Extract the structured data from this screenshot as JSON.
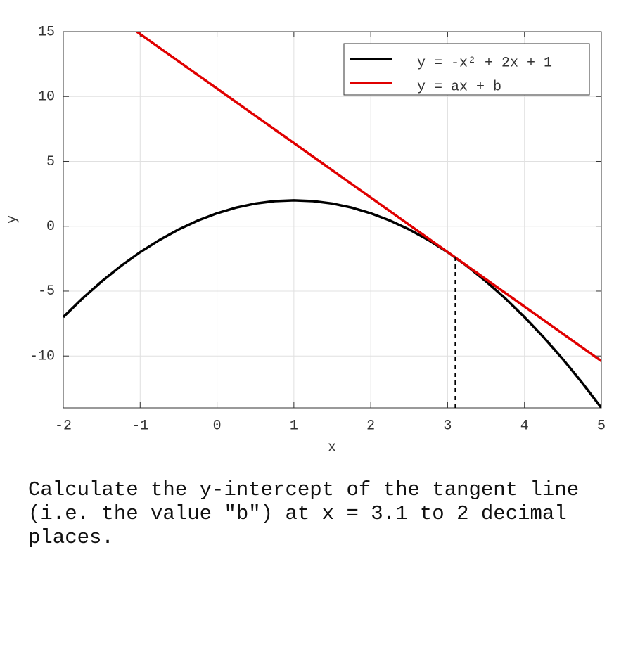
{
  "chart_data": {
    "type": "line",
    "xlabel": "x",
    "ylabel": "y",
    "xlim": [
      -2,
      5
    ],
    "ylim": [
      -14,
      15
    ],
    "xticks": [
      -2,
      -1,
      0,
      1,
      2,
      3,
      4,
      5
    ],
    "yticks": [
      -10,
      -5,
      0,
      5,
      10,
      15
    ],
    "grid": true,
    "legend": "upper right",
    "series": [
      {
        "name": "y = -x² + 2x + 1",
        "color": "#000000",
        "x": [
          -2,
          -1.75,
          -1.5,
          -1.25,
          -1,
          -0.75,
          -0.5,
          -0.25,
          0,
          0.25,
          0.5,
          0.75,
          1,
          1.25,
          1.5,
          1.75,
          2,
          2.25,
          2.5,
          2.75,
          3,
          3.25,
          3.5,
          3.75,
          4,
          4.25,
          4.5,
          4.75,
          5
        ],
        "values": [
          -7,
          -5.5625,
          -4.25,
          -3.0625,
          -2,
          -1.0625,
          -0.25,
          0.4375,
          1,
          1.4375,
          1.75,
          1.9375,
          2,
          1.9375,
          1.75,
          1.4375,
          1,
          0.4375,
          -0.25,
          -1.0625,
          -2,
          -3.0625,
          -4.25,
          -5.5625,
          -7,
          -8.5625,
          -10.25,
          -12.0625,
          -14
        ]
      },
      {
        "name": "y = ax + b",
        "color": "#e00000",
        "x": [
          -1.045,
          5
        ],
        "values": [
          15,
          -10.39
        ]
      }
    ],
    "tangent_point": {
      "x": 3.1,
      "y": -2.41
    }
  },
  "question": "Calculate the y-intercept of the tangent line (i.e. the value \"b\") at x = 3.1 to 2 decimal places."
}
